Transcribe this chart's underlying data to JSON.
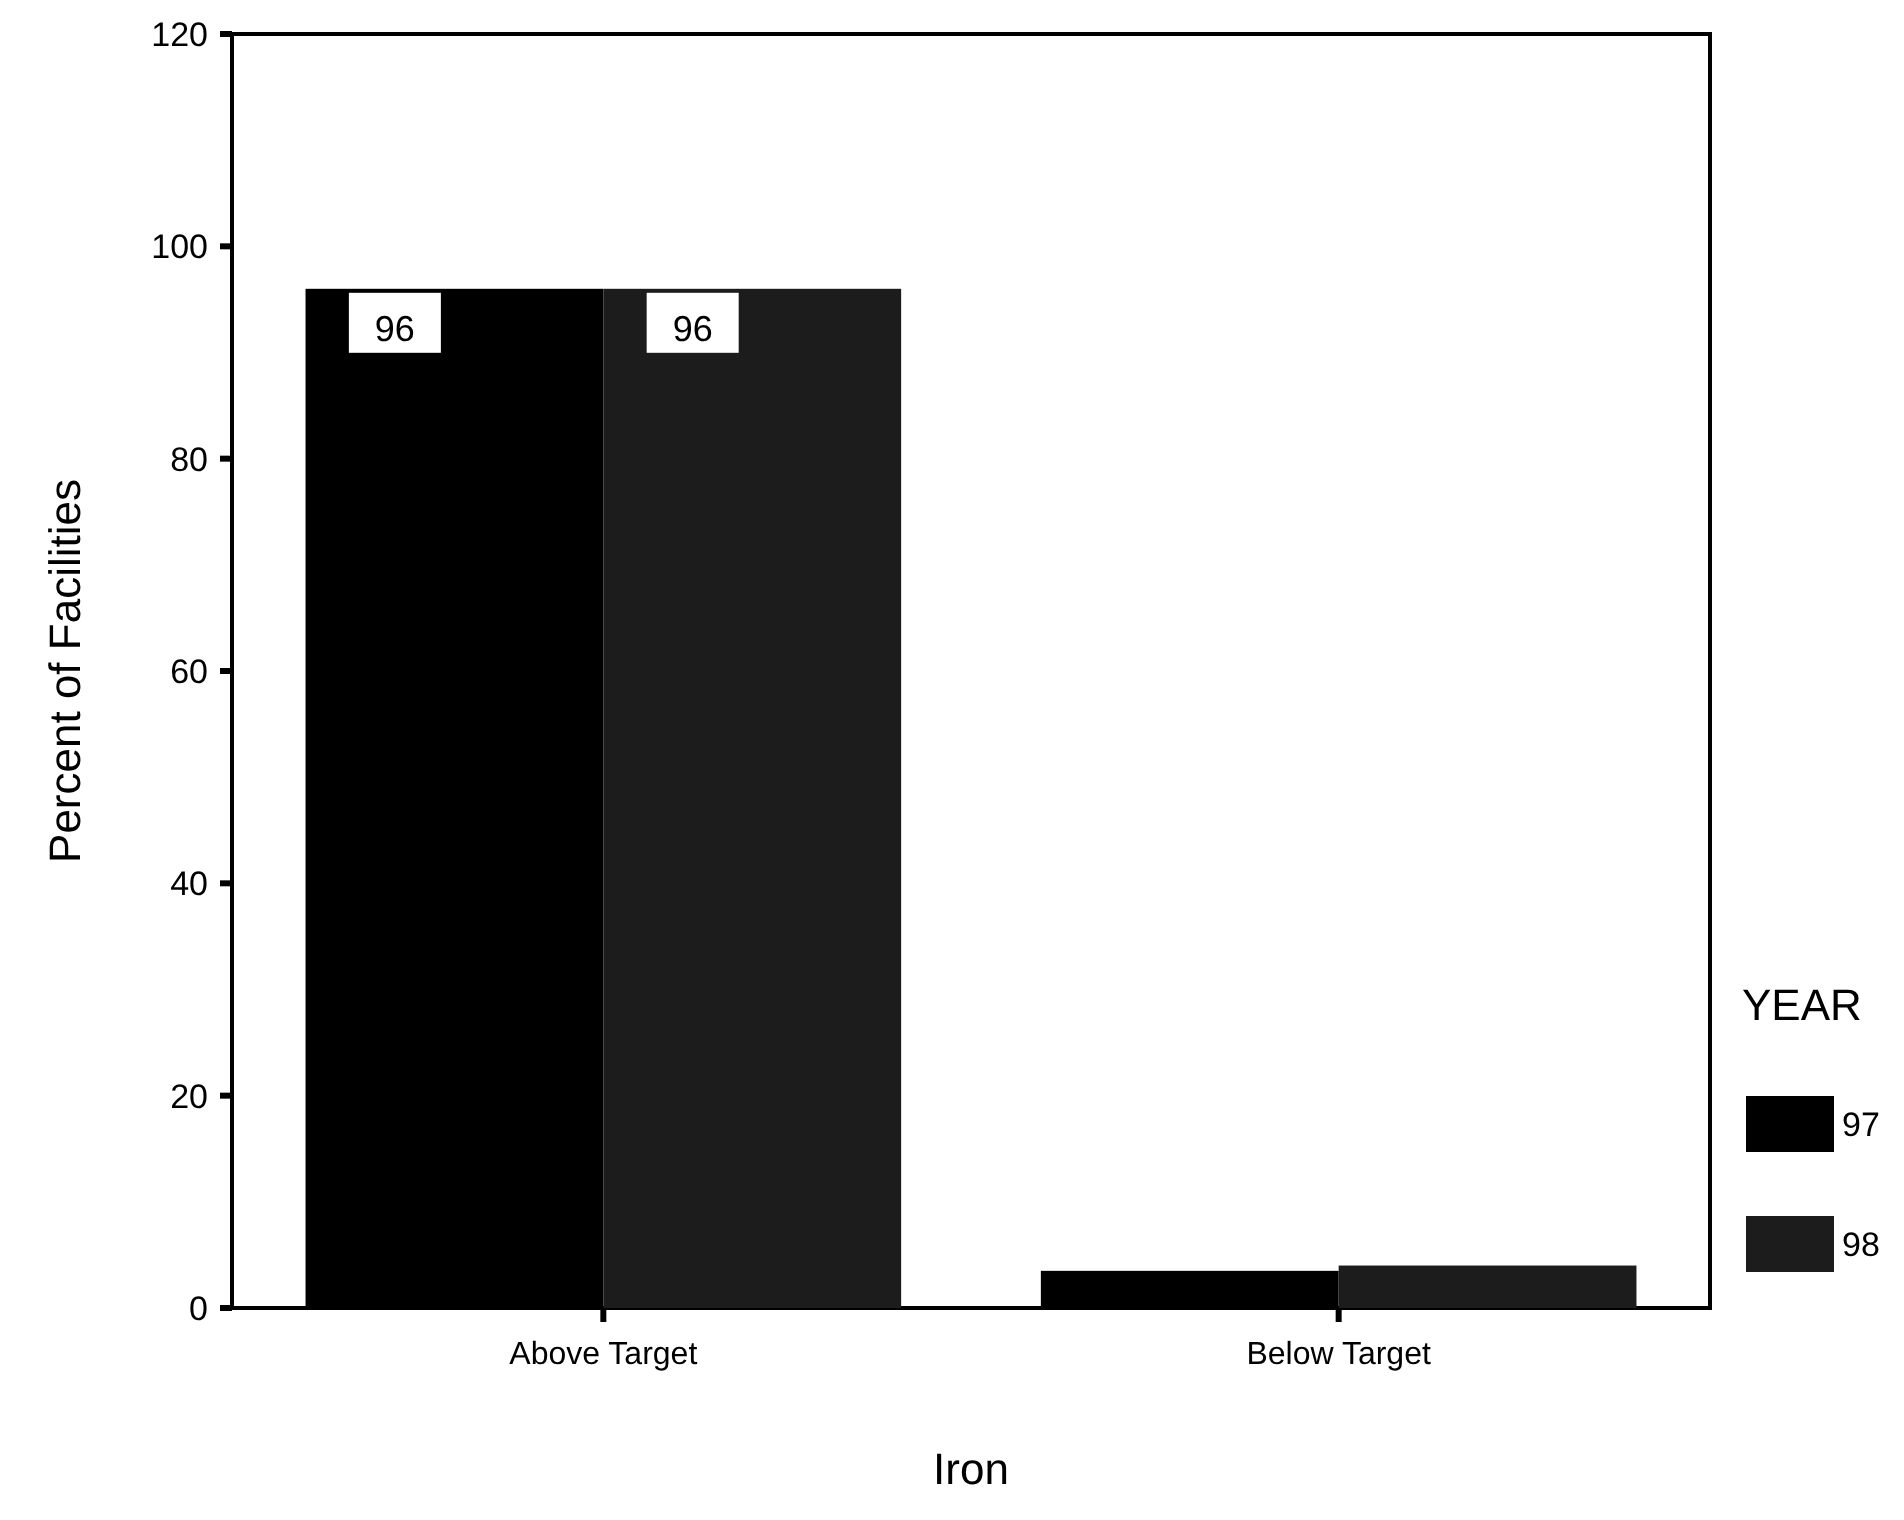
{
  "chart_data": {
    "type": "bar",
    "xlabel": "Iron",
    "ylabel": "Percent of Facilities",
    "legend_title": "YEAR",
    "categories": [
      "Above Target",
      "Below Target"
    ],
    "series": [
      {
        "name": "97",
        "color": "#000000",
        "values": [
          96,
          3.5
        ],
        "value_labels": [
          "96",
          null
        ]
      },
      {
        "name": "98",
        "color": "#1c1c1c",
        "values": [
          96,
          4
        ],
        "value_labels": [
          "96",
          null
        ]
      }
    ],
    "ylim": [
      0,
      120
    ],
    "yticks": [
      0,
      20,
      40,
      60,
      80,
      100,
      120
    ],
    "grid": false,
    "legend": "right"
  }
}
